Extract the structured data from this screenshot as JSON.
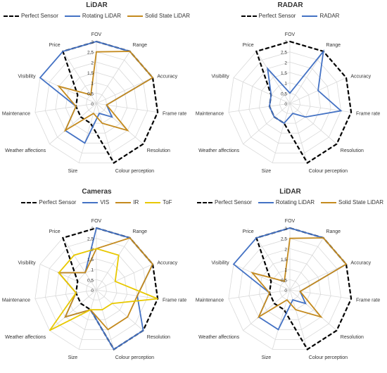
{
  "chart_data": [
    {
      "type": "radar",
      "title": "LiDAR",
      "axes": [
        "FOV",
        "Range",
        "Accuracy",
        "Frame rate",
        "Resolution",
        "Colour perception",
        "Size",
        "Weather affections",
        "Maintenance",
        "Visibility",
        "Price"
      ],
      "rlim": [
        0,
        3
      ],
      "ticks": [
        "0",
        "0,5",
        "1",
        "1,5",
        "2",
        "2,5",
        "3"
      ],
      "legend_position": "top",
      "series": [
        {
          "name": "Perfect Sensor",
          "color": "#000000",
          "dashed": true,
          "values": [
            3,
            3,
            3,
            3,
            3,
            3,
            1,
            1,
            1,
            1,
            3
          ]
        },
        {
          "name": "Rotating LiDAR",
          "color": "#4472C4",
          "dashed": false,
          "values": [
            3,
            3,
            3,
            0.5,
            1,
            0.5,
            2,
            2,
            1,
            3,
            3
          ]
        },
        {
          "name": "Solid State LiDAR",
          "color": "#C48A1E",
          "dashed": false,
          "values": [
            2.5,
            3,
            3,
            0.5,
            2,
            1,
            0.5,
            2,
            1,
            2,
            0.5
          ]
        }
      ]
    },
    {
      "type": "radar",
      "title": "RADAR",
      "axes": [
        "FOV",
        "Range",
        "Accuracy",
        "Frame rate",
        "Resolution",
        "Colour perception",
        "Size",
        "Weather affections",
        "Maintenance",
        "Visibility",
        "Price"
      ],
      "rlim": [
        0,
        3
      ],
      "ticks": [
        "0",
        "0,5",
        "1",
        "1,5",
        "2",
        "2,5",
        "3"
      ],
      "legend_position": "top",
      "series": [
        {
          "name": "Perfect Sensor",
          "color": "#000000",
          "dashed": true,
          "values": [
            3,
            3,
            3,
            3,
            3,
            3,
            1,
            1,
            1,
            1,
            3
          ]
        },
        {
          "name": "RADAR",
          "color": "#4472C4",
          "dashed": false,
          "values": [
            0.5,
            3,
            1.5,
            2.5,
            1,
            0.5,
            1,
            1,
            1,
            1,
            2
          ]
        }
      ]
    },
    {
      "type": "radar",
      "title": "Cameras",
      "axes": [
        "FOV",
        "Range",
        "Accuracy",
        "Frame rate",
        "Resolution",
        "Colour perception",
        "Size",
        "Weather affections",
        "Maintenance",
        "Visibility",
        "Price"
      ],
      "rlim": [
        0,
        3
      ],
      "ticks": [
        "0",
        "0,5",
        "1",
        "1,5",
        "2",
        "2,5",
        "3"
      ],
      "legend_position": "top",
      "series": [
        {
          "name": "Perfect Sensor",
          "color": "#000000",
          "dashed": true,
          "values": [
            3,
            3,
            3,
            3,
            3,
            3,
            1,
            1,
            1,
            1,
            3
          ]
        },
        {
          "name": "VIS",
          "color": "#4472C4",
          "dashed": false,
          "values": [
            3,
            3,
            3,
            2,
            3,
            3,
            1,
            2,
            1,
            2,
            1
          ]
        },
        {
          "name": "IR",
          "color": "#C48A1E",
          "dashed": false,
          "values": [
            2,
            3,
            3,
            2,
            2,
            2,
            1,
            2,
            1,
            2,
            1
          ]
        },
        {
          "name": "ToF",
          "color": "#E8C800",
          "dashed": false,
          "values": [
            2,
            2,
            1,
            3,
            1,
            1,
            1,
            3,
            1,
            2,
            2
          ]
        }
      ]
    },
    {
      "type": "radar",
      "title": "LiDAR",
      "axes": [
        "FOV",
        "Range",
        "Accuracy",
        "Frame rate",
        "Resolution",
        "Colour perception",
        "Size",
        "Weather affections",
        "Maintenance",
        "Visibility",
        "Price"
      ],
      "rlim": [
        0,
        3
      ],
      "ticks": [
        "0",
        "0,5",
        "1",
        "1,5",
        "2",
        "2,5",
        "3"
      ],
      "legend_position": "top",
      "series": [
        {
          "name": "Perfect Sensor",
          "color": "#000000",
          "dashed": true,
          "values": [
            3,
            3,
            3,
            3,
            3,
            3,
            1,
            1,
            1,
            1,
            3
          ]
        },
        {
          "name": "Rotating LiDAR",
          "color": "#4472C4",
          "dashed": false,
          "values": [
            3,
            3,
            3,
            0.5,
            1,
            0.5,
            2,
            2,
            1,
            3,
            3
          ]
        },
        {
          "name": "Solid State LiDAR",
          "color": "#C48A1E",
          "dashed": false,
          "values": [
            2.5,
            3,
            3,
            0.5,
            2,
            1,
            0.5,
            2,
            1,
            2,
            0.5
          ]
        }
      ]
    }
  ]
}
